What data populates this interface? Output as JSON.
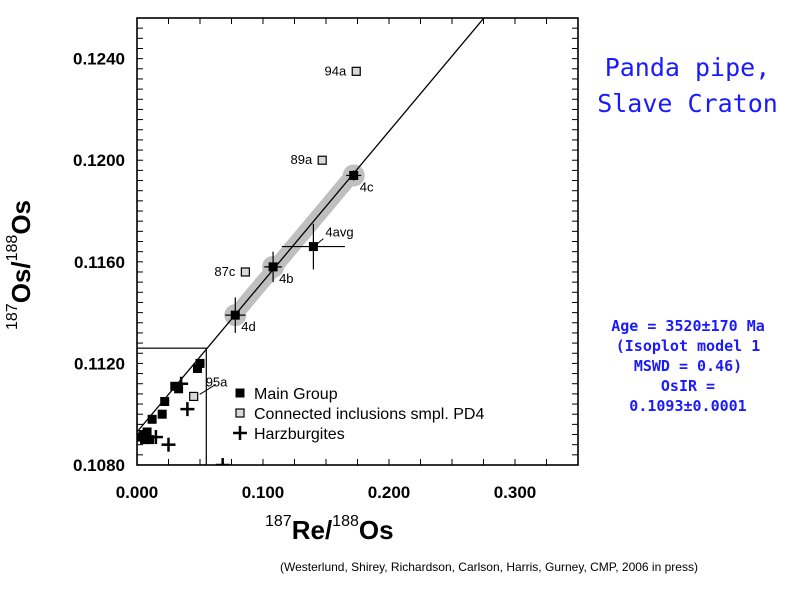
{
  "chart_data": {
    "type": "scatter",
    "xlabel": {
      "sup1": "187",
      "part1": "Re/",
      "sup2": "188",
      "part2": "Os"
    },
    "ylabel": {
      "sup1": "187",
      "part1": "Os/",
      "sup2": "188",
      "part2": "Os"
    },
    "xlim": [
      0.0,
      0.35
    ],
    "ylim": [
      0.108,
      0.1256
    ],
    "x_ticks": [
      "0.000",
      "0.100",
      "0.200",
      "0.300"
    ],
    "x_tick_values": [
      0.0,
      0.1,
      0.2,
      0.3
    ],
    "y_ticks": [
      "0.1080",
      "0.1120",
      "0.1160",
      "0.1200",
      "0.1240"
    ],
    "y_tick_values": [
      0.108,
      0.112,
      0.116,
      0.12,
      0.124
    ],
    "isochron": {
      "slope": 0.0592,
      "intercept": 0.1093
    },
    "highlight_segment": {
      "x": [
        0.077,
        0.172
      ]
    },
    "series": [
      {
        "name": "Main Group",
        "marker": "filled-square",
        "points": [
          {
            "x": 0.078,
            "y": 0.1139,
            "xerr": 0.008,
            "yerr": 0.0007
          },
          {
            "x": 0.108,
            "y": 0.1158,
            "xerr": 0.007,
            "yerr": 0.0006
          },
          {
            "x": 0.14,
            "y": 0.1166,
            "xerr": 0.025,
            "yerr": 0.0009
          },
          {
            "x": 0.172,
            "y": 0.1194,
            "xerr": 0.006,
            "yerr": 0.0002
          },
          {
            "x": 0.05,
            "y": 0.112,
            "xerr": 0,
            "yerr": 0
          },
          {
            "x": 0.048,
            "y": 0.1118,
            "xerr": 0,
            "yerr": 0
          },
          {
            "x": 0.03,
            "y": 0.1111,
            "xerr": 0,
            "yerr": 0
          },
          {
            "x": 0.033,
            "y": 0.111,
            "xerr": 0,
            "yerr": 0
          },
          {
            "x": 0.022,
            "y": 0.1105,
            "xerr": 0,
            "yerr": 0
          },
          {
            "x": 0.02,
            "y": 0.11,
            "xerr": 0,
            "yerr": 0
          },
          {
            "x": 0.012,
            "y": 0.1098,
            "xerr": 0,
            "yerr": 0
          },
          {
            "x": 0.008,
            "y": 0.1093,
            "xerr": 0,
            "yerr": 0
          },
          {
            "x": 0.005,
            "y": 0.1092,
            "xerr": 0,
            "yerr": 0
          },
          {
            "x": 0.006,
            "y": 0.109,
            "xerr": 0,
            "yerr": 0
          },
          {
            "x": 0.003,
            "y": 0.1091,
            "xerr": 0,
            "yerr": 0
          },
          {
            "x": 0.01,
            "y": 0.109,
            "xerr": 0,
            "yerr": 0
          }
        ]
      },
      {
        "name": "Connected inclusions smpl. PD4",
        "marker": "open-square",
        "points": [
          {
            "x": 0.174,
            "y": 0.1235
          },
          {
            "x": 0.147,
            "y": 0.12
          },
          {
            "x": 0.086,
            "y": 0.1156
          },
          {
            "x": 0.045,
            "y": 0.1107
          }
        ]
      },
      {
        "name": "Harzburgites",
        "marker": "cross",
        "points": [
          {
            "x": 0.035,
            "y": 0.1112
          },
          {
            "x": 0.04,
            "y": 0.1102
          },
          {
            "x": 0.015,
            "y": 0.1091
          },
          {
            "x": 0.025,
            "y": 0.1088
          },
          {
            "x": 0.068,
            "y": 0.108
          }
        ]
      }
    ],
    "annotations": [
      {
        "text": "94a",
        "x": 0.174,
        "y": 0.1235,
        "anchor": "left-of"
      },
      {
        "text": "89a",
        "x": 0.147,
        "y": 0.12,
        "anchor": "left-of"
      },
      {
        "text": "4c",
        "x": 0.172,
        "y": 0.1194,
        "anchor": "right-below"
      },
      {
        "text": "4avg",
        "x": 0.14,
        "y": 0.1166,
        "anchor": "right-above"
      },
      {
        "text": "87c",
        "x": 0.086,
        "y": 0.1156,
        "anchor": "left-of"
      },
      {
        "text": "4b",
        "x": 0.108,
        "y": 0.1158,
        "anchor": "right-below"
      },
      {
        "text": "4d",
        "x": 0.078,
        "y": 0.1139,
        "anchor": "right-below"
      },
      {
        "text": "95a",
        "x": 0.045,
        "y": 0.1107,
        "anchor": "right-above"
      }
    ],
    "inset_box": {
      "x": [
        0.0,
        0.055
      ],
      "y": [
        0.108,
        0.1126
      ]
    },
    "legend_placement": "bottom-left"
  },
  "side_title": [
    "Panda pipe,",
    "Slave Craton"
  ],
  "age_block": [
    "Age = 3520±170 Ma",
    "(Isoplot model 1",
    "MSWD = 0.46)",
    "OsIR =",
    "0.1093±0.0001"
  ],
  "citation": "(Westerlund, Shirey, Richardson, Carlson, Harris, Gurney, CMP, 2006 in press)",
  "colors": {
    "title_blue": "#1a1aff",
    "highlight_gray": "#bfbfbf",
    "open_marker_fill": "#d9d9d9"
  }
}
